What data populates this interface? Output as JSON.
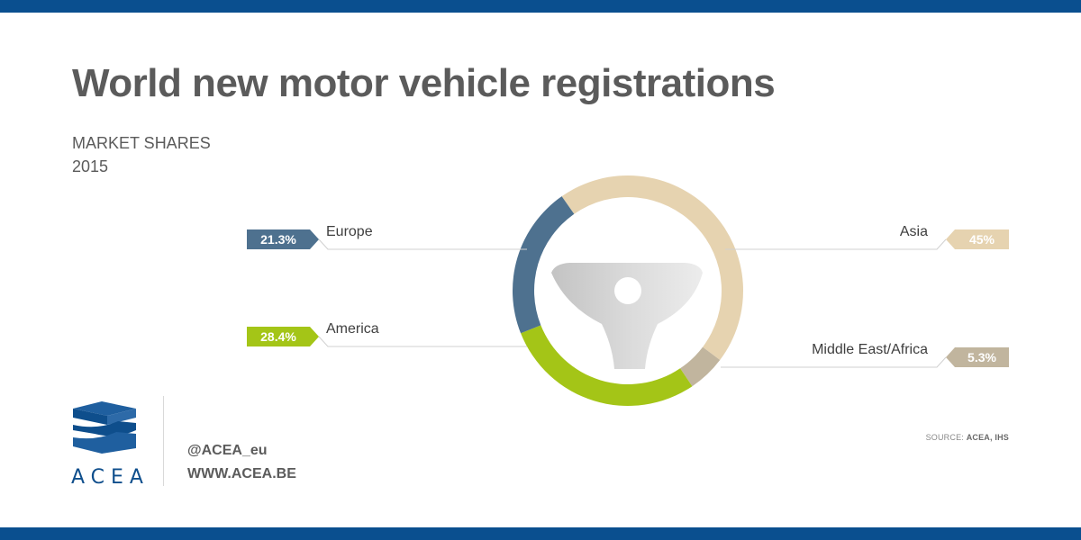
{
  "header": {
    "title": "World new motor vehicle registrations",
    "subtitle_line1": "MARKET SHARES",
    "subtitle_line2": "2015"
  },
  "chart_data": {
    "type": "pie",
    "title": "World new motor vehicle registrations",
    "subtitle": "MARKET SHARES 2015",
    "slices": [
      {
        "label": "Asia",
        "value": 45,
        "value_label": "45%",
        "color": "#e6d3b0"
      },
      {
        "label": "Middle East/Africa",
        "value": 5.3,
        "value_label": "5.3%",
        "color": "#c1b59e"
      },
      {
        "label": "America",
        "value": 28.4,
        "value_label": "28.4%",
        "color": "#a4c517"
      },
      {
        "label": "Europe",
        "value": 21.3,
        "value_label": "21.3%",
        "color": "#4e718f"
      }
    ]
  },
  "footer": {
    "logo_text": "ACEA",
    "handle": "@ACEA_eu",
    "website": "WWW.ACEA.BE",
    "source_label": "SOURCE:",
    "source_value": "ACEA, IHS"
  },
  "colors": {
    "brand_blue": "#0a4f8f",
    "title_grey": "#5b5b5b"
  }
}
